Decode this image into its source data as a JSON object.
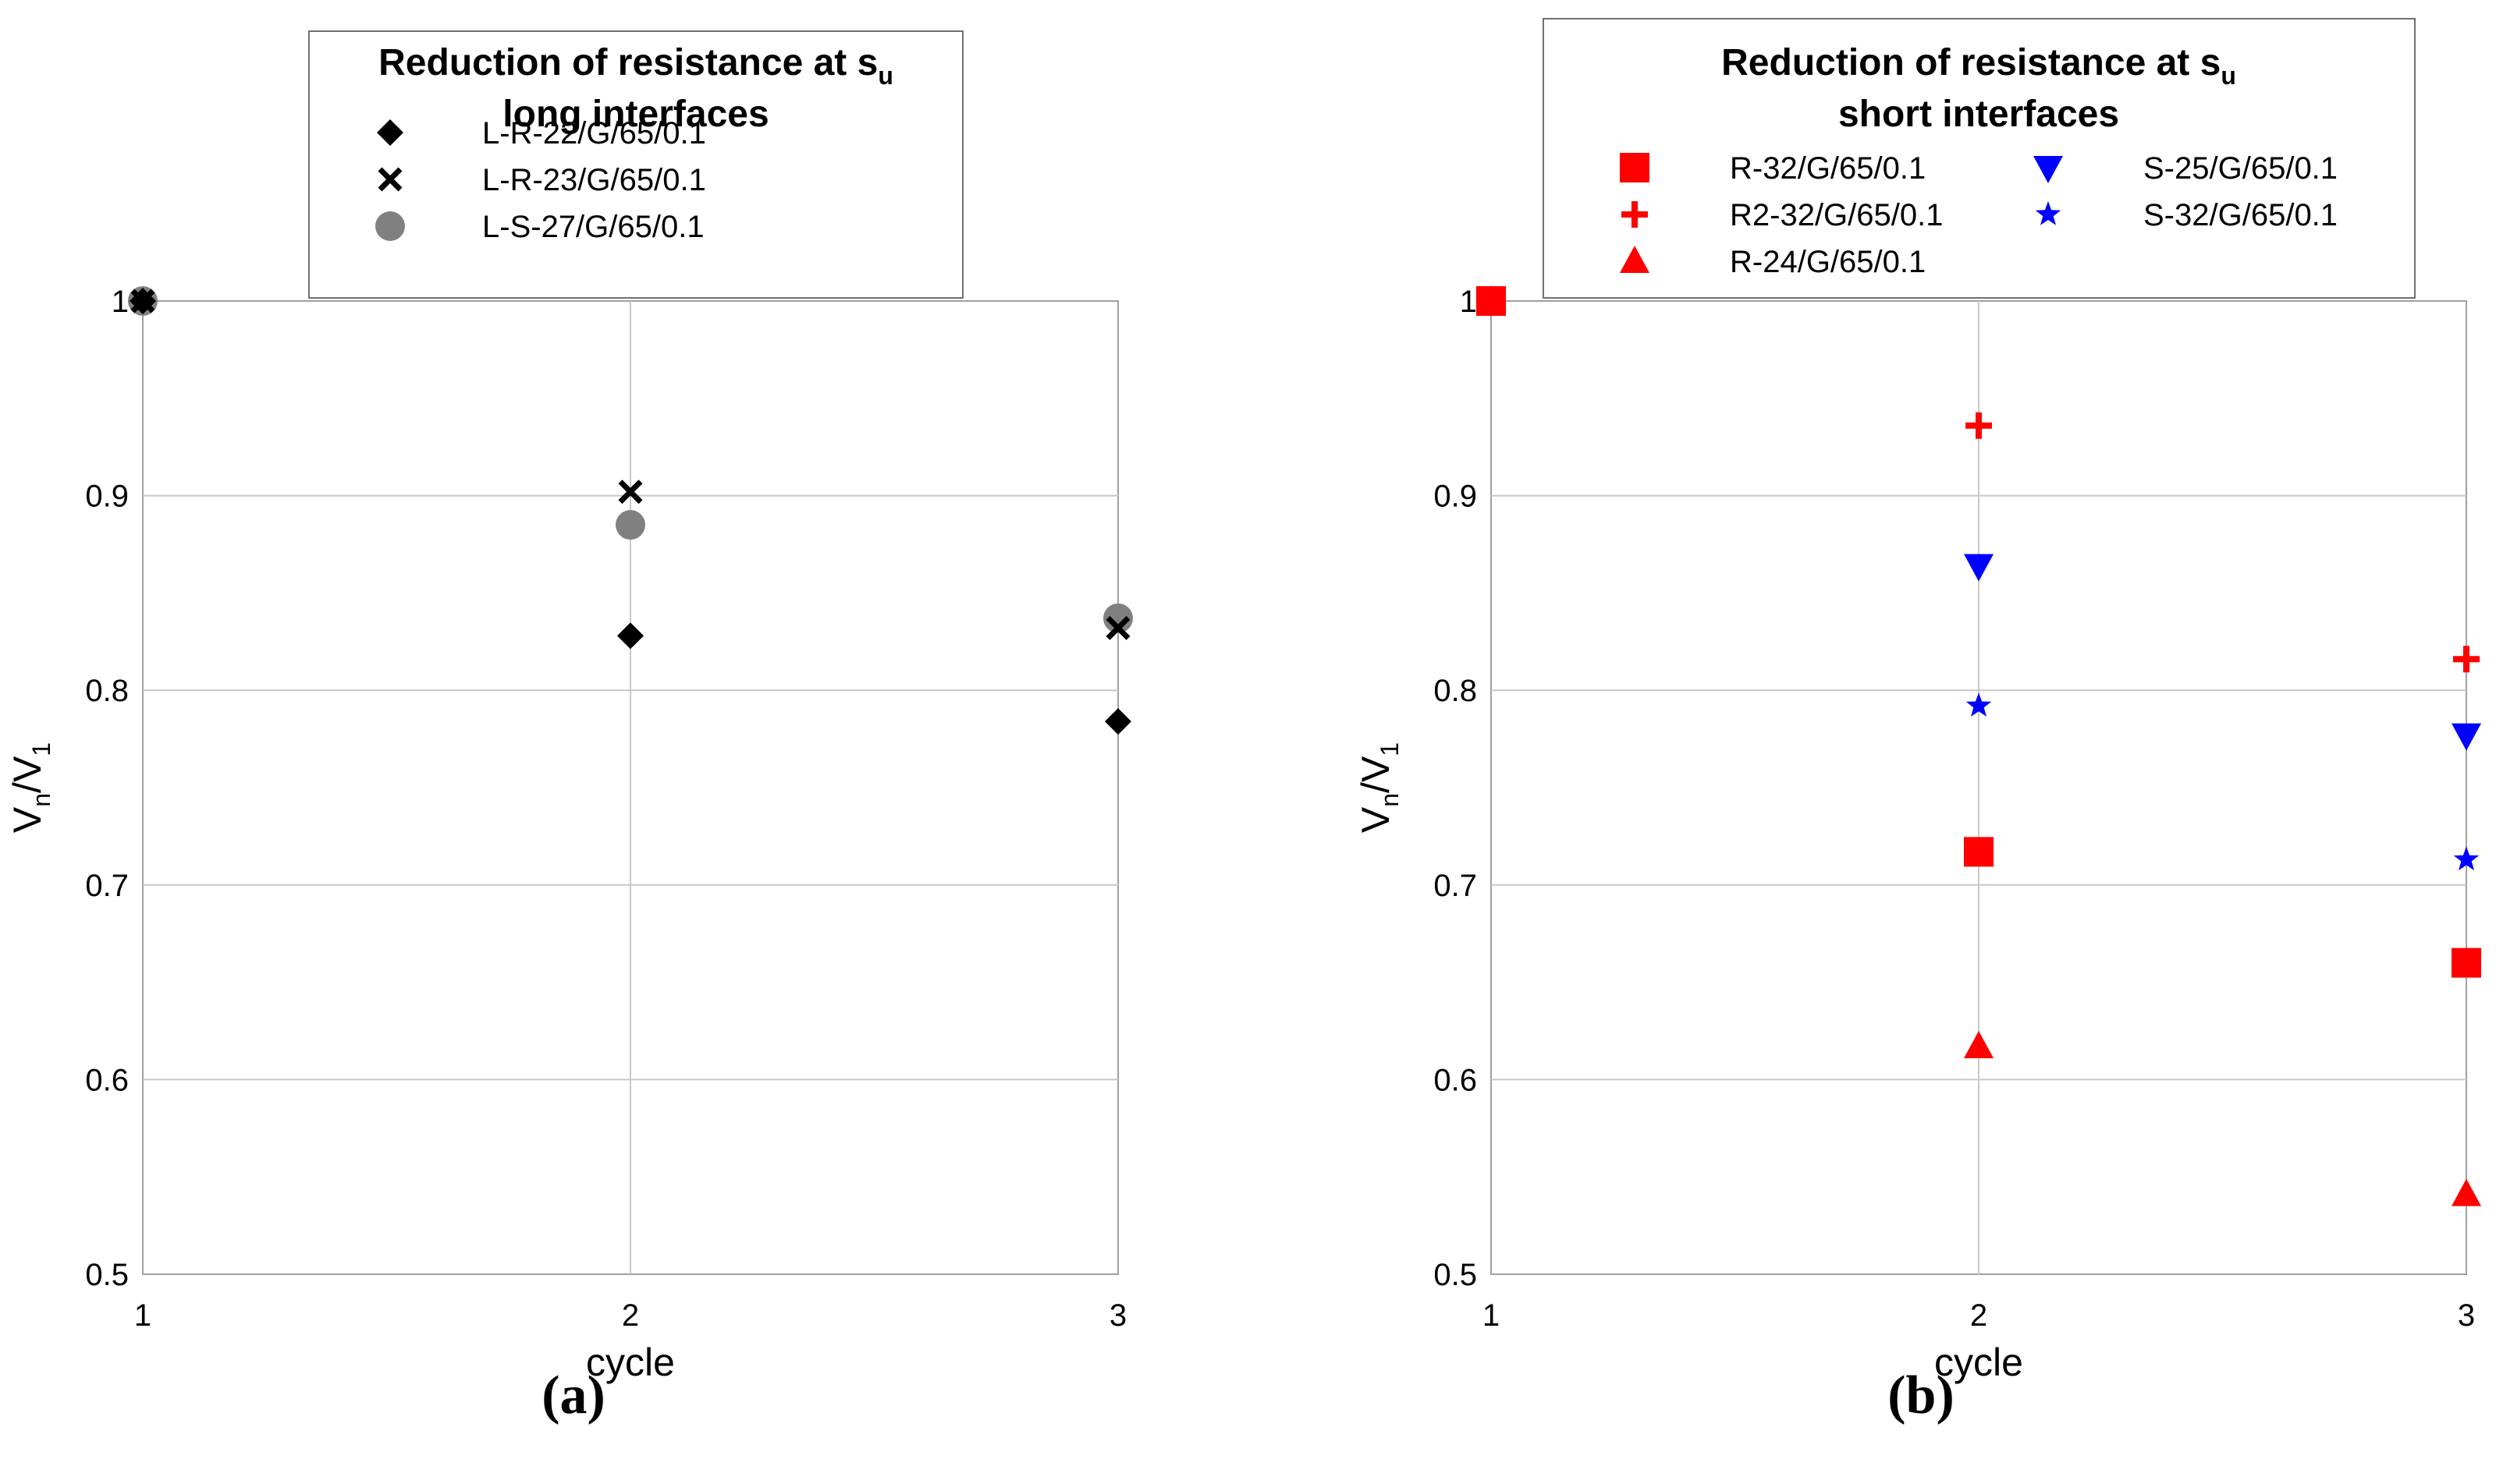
{
  "panels": [
    {
      "caption": "(a)",
      "legend": {
        "title_main": "Reduction of resistance at s",
        "title_sub": "u",
        "subtitle": "long interfaces"
      },
      "chart_data": {
        "type": "scatter",
        "xlabel": "cycle",
        "ylabel_main": "V",
        "ylabel_sub1": "n",
        "ylabel_slash": "/V",
        "ylabel_sub2": "1",
        "xlim": [
          1,
          3
        ],
        "ylim": [
          0.5,
          1.0
        ],
        "x_ticks": [
          "1",
          "2",
          "3"
        ],
        "y_ticks": [
          "0.5",
          "0.6",
          "0.7",
          "0.8",
          "0.9",
          "1"
        ],
        "grid": true,
        "legend_position": "top-center",
        "series": [
          {
            "name": "L-R-22/G/65/0.1",
            "marker": "diamond-icon",
            "color": "#000000",
            "x": [
              1,
              2,
              3
            ],
            "y": [
              1.0,
              0.828,
              0.784
            ]
          },
          {
            "name": "L-R-23/G/65/0.1",
            "marker": "cross-x-icon",
            "color": "#000000",
            "x": [
              1,
              2,
              3
            ],
            "y": [
              1.0,
              0.902,
              0.832
            ]
          },
          {
            "name": "L-S-27/G/65/0.1",
            "marker": "circle-icon",
            "color": "#808080",
            "x": [
              1,
              2,
              3
            ],
            "y": [
              1.0,
              0.885,
              0.837
            ]
          }
        ]
      }
    },
    {
      "caption": "(b)",
      "legend": {
        "title_main": "Reduction of resistance at s",
        "title_sub": "u",
        "subtitle": "short interfaces"
      },
      "chart_data": {
        "type": "scatter",
        "xlabel": "cycle",
        "ylabel_main": "V",
        "ylabel_sub1": "n",
        "ylabel_slash": "/V",
        "ylabel_sub2": "1",
        "xlim": [
          1,
          3
        ],
        "ylim": [
          0.5,
          1.0
        ],
        "x_ticks": [
          "1",
          "2",
          "3"
        ],
        "y_ticks": [
          "0.5",
          "0.6",
          "0.7",
          "0.8",
          "0.9",
          "1"
        ],
        "grid": true,
        "legend_position": "top-center",
        "series": [
          {
            "name": "R-32/G/65/0.1",
            "marker": "square-icon",
            "color": "#ff0000",
            "x": [
              1,
              2,
              3
            ],
            "y": [
              1.0,
              0.717,
              0.66
            ]
          },
          {
            "name": "R2-32/G/65/0.1",
            "marker": "plus-icon",
            "color": "#ff0000",
            "x": [
              1,
              2,
              3
            ],
            "y": [
              1.0,
              0.936,
              0.816
            ]
          },
          {
            "name": "R-24/G/65/0.1",
            "marker": "triangle-up-icon",
            "color": "#ff0000",
            "x": [
              1,
              2,
              3
            ],
            "y": [
              1.0,
              0.617,
              0.541
            ]
          },
          {
            "name": "S-25/G/65/0.1",
            "marker": "triangle-down-icon",
            "color": "#0000ff",
            "x": [
              1,
              2,
              3
            ],
            "y": [
              1.0,
              0.864,
              0.777
            ]
          },
          {
            "name": "S-32/G/65/0.1",
            "marker": "star-icon",
            "color": "#0000ff",
            "x": [
              1,
              2,
              3
            ],
            "y": [
              1.0,
              0.792,
              0.713
            ]
          }
        ]
      }
    }
  ]
}
